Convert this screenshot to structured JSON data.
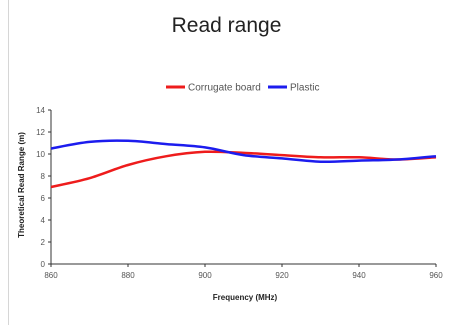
{
  "chart_data": {
    "type": "line",
    "title": "Read range",
    "xlabel": "Frequency (MHz)",
    "ylabel": "Theoretical Read Range (m)",
    "xlim": [
      860,
      960
    ],
    "ylim": [
      0,
      14
    ],
    "x_ticks": [
      860,
      880,
      900,
      920,
      940,
      960
    ],
    "y_ticks": [
      0,
      2,
      4,
      6,
      8,
      10,
      12,
      14
    ],
    "grid": false,
    "legend_position": "top-center",
    "series": [
      {
        "name": "Corrugate board",
        "color": "#ee1c1c",
        "x": [
          860,
          870,
          880,
          890,
          900,
          910,
          920,
          930,
          940,
          950,
          960
        ],
        "y": [
          7.0,
          7.8,
          9.0,
          9.8,
          10.2,
          10.1,
          9.9,
          9.7,
          9.7,
          9.5,
          9.7
        ]
      },
      {
        "name": "Plastic",
        "color": "#1c1cee",
        "x": [
          860,
          870,
          880,
          890,
          900,
          910,
          920,
          930,
          940,
          950,
          960
        ],
        "y": [
          10.5,
          11.1,
          11.2,
          10.9,
          10.6,
          9.9,
          9.6,
          9.3,
          9.4,
          9.5,
          9.8
        ]
      }
    ]
  }
}
